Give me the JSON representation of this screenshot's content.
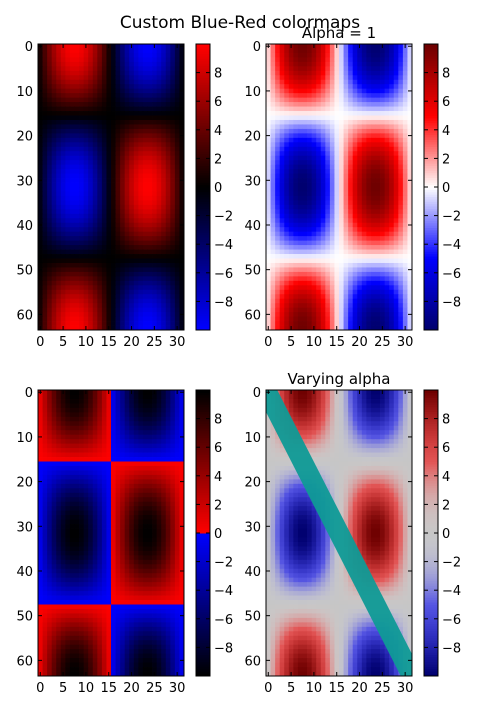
{
  "figure": {
    "suptitle": "Custom Blue-Red colormaps"
  },
  "chart_data": [
    {
      "type": "heatmap",
      "title": "",
      "function": "sin(x)*cos(y) pattern, values ~ -10..10, 64 rows x 32 cols",
      "xticks": [
        0,
        5,
        10,
        15,
        20,
        25,
        30
      ],
      "yticks": [
        0,
        10,
        20,
        30,
        40,
        50,
        60
      ],
      "xlim": [
        0,
        32
      ],
      "ylim": [
        64,
        0
      ],
      "colormap": "BlueRed1 (blue-black-red, dark center)",
      "colorbar_ticks": [
        -8,
        -6,
        -4,
        -2,
        0,
        2,
        4,
        6,
        8
      ],
      "colorbar_range": [
        -10,
        10
      ]
    },
    {
      "type": "heatmap",
      "title": "Alpha = 1",
      "xticks": [
        0,
        5,
        10,
        15,
        20,
        25,
        30
      ],
      "yticks": [
        0,
        10,
        20,
        30,
        40,
        50,
        60
      ],
      "xlim": [
        0,
        32
      ],
      "ylim": [
        64,
        0
      ],
      "colormap": "BlueRed2 (navy-blue-white-red-darkred)",
      "colorbar_ticks": [
        -8,
        -6,
        -4,
        -2,
        0,
        2,
        4,
        6,
        8
      ],
      "colorbar_range": [
        -10,
        10
      ]
    },
    {
      "type": "heatmap",
      "title": "",
      "xticks": [
        0,
        5,
        10,
        15,
        20,
        25,
        30
      ],
      "yticks": [
        0,
        10,
        20,
        30,
        40,
        50,
        60
      ],
      "xlim": [
        0,
        32
      ],
      "ylim": [
        64,
        0
      ],
      "colormap": "BlueRed3 (black-blue | red-black, discontinuous at 0)",
      "colorbar_ticks": [
        -8,
        -6,
        -4,
        -2,
        0,
        2,
        4,
        6,
        8
      ],
      "colorbar_range": [
        -10,
        10
      ]
    },
    {
      "type": "heatmap",
      "title": "Varying alpha",
      "xticks": [
        0,
        5,
        10,
        15,
        20,
        25,
        30
      ],
      "yticks": [
        0,
        10,
        20,
        30,
        40,
        50,
        60
      ],
      "xlim": [
        0,
        32
      ],
      "ylim": [
        64,
        0
      ],
      "colormap": "BlueRedAlpha (alpha varies with value, teal diagonal line)",
      "colorbar_ticks": [
        -8,
        -6,
        -4,
        -2,
        0,
        2,
        4,
        6,
        8
      ],
      "colorbar_range": [
        -10,
        10
      ],
      "overlay_line": {
        "x": [
          0,
          32
        ],
        "y": [
          0,
          64
        ],
        "color": "#0f9a96"
      }
    }
  ]
}
